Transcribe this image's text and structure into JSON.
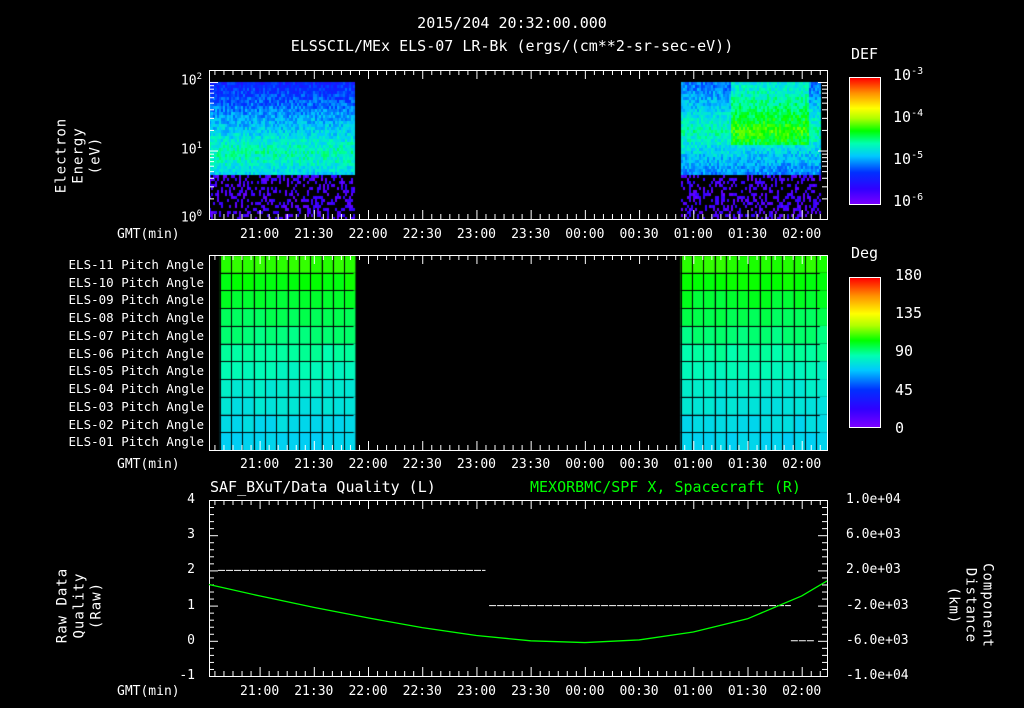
{
  "header": {
    "timestamp": "2015/204 20:32:00.000",
    "subtitle": "ELSSCIL/MEx ELS-07 LR-Bk  (ergs/(cm**2-sr-sec-eV))"
  },
  "time_axis": {
    "label": "GMT(min)",
    "ticks": [
      "21:00",
      "21:30",
      "22:00",
      "22:30",
      "23:00",
      "23:30",
      "00:00",
      "00:30",
      "01:00",
      "01:30",
      "02:00"
    ]
  },
  "colors": {
    "quality": "#ffffff",
    "spacecraft_x": "#00ff00",
    "background": "#000000"
  },
  "chart_data": [
    {
      "type": "heatmap",
      "title": "ELSSCIL/MEx ELS-07 LR-Bk  (ergs/(cm**2-sr-sec-eV))",
      "ylabel": [
        "Electron Energy",
        "(eV)"
      ],
      "yscale": "log",
      "ylim": [
        1,
        150
      ],
      "ytick_labels": [
        {
          "base": "10",
          "exp": "2"
        },
        {
          "base": "10",
          "exp": "1"
        },
        {
          "base": "10",
          "exp": "0"
        }
      ],
      "data_intervals_min_from_start": [
        [
          0,
          80
        ],
        [
          261,
          338
        ]
      ],
      "time_range": [
        "20:32",
        "02:14"
      ],
      "colorbar": {
        "label": "DEF",
        "scale": "log",
        "range": [
          1e-06,
          0.001
        ],
        "ticks": [
          {
            "base": "10",
            "exp": "-3"
          },
          {
            "base": "10",
            "exp": "-4"
          },
          {
            "base": "10",
            "exp": "-5"
          },
          {
            "base": "10",
            "exp": "-6"
          }
        ]
      }
    },
    {
      "type": "heatmap",
      "rows": [
        "ELS-11 Pitch Angle",
        "ELS-10 Pitch Angle",
        "ELS-09 Pitch Angle",
        "ELS-08 Pitch Angle",
        "ELS-07 Pitch Angle",
        "ELS-06 Pitch Angle",
        "ELS-05 Pitch Angle",
        "ELS-04 Pitch Angle",
        "ELS-03 Pitch Angle",
        "ELS-02 Pitch Angle",
        "ELS-01 Pitch Angle"
      ],
      "row_values_deg": [
        108,
        104,
        100,
        96,
        92,
        88,
        84,
        80,
        77,
        74,
        72
      ],
      "data_intervals_min_from_start": [
        [
          6,
          80
        ],
        [
          261,
          338
        ]
      ],
      "colorbar": {
        "label": "Deg",
        "range": [
          0,
          180
        ],
        "ticks": [
          "180",
          "135",
          "90",
          "45",
          "0"
        ]
      }
    },
    {
      "type": "line",
      "title_left": "SAF_BXuT/Data Quality (L)",
      "title_right": "MEXORBMC/SPF X, Spacecraft (R)",
      "ylabel_left": [
        "Raw Data Quality",
        "(Raw)"
      ],
      "ylabel_right": [
        "Component Distance",
        "(km)"
      ],
      "ylim_left": [
        -1,
        4
      ],
      "ylim_right": [
        -10000,
        10000
      ],
      "yticks_left": [
        "4",
        "3",
        "2",
        "1",
        "0",
        "-1"
      ],
      "yticks_right": [
        "1.0e+04",
        "6.0e+03",
        "2.0e+03",
        "-2.0e+03",
        "-6.0e+03",
        "-1.0e+04"
      ],
      "series": [
        {
          "name": "Data Quality",
          "axis": "left",
          "segments": [
            {
              "start_min": 5,
              "end_min": 153,
              "value": 2
            },
            {
              "start_min": 155,
              "end_min": 322,
              "value": 1
            },
            {
              "start_min": 322,
              "end_min": 335,
              "value": 0
            }
          ]
        },
        {
          "name": "SPF X, Spacecraft",
          "axis": "right",
          "x_min": [
            0,
            28,
            58,
            88,
            118,
            148,
            178,
            208,
            238,
            268,
            298,
            328,
            342
          ],
          "values": [
            400,
            -900,
            -2200,
            -3400,
            -4500,
            -5400,
            -6000,
            -6200,
            -5900,
            -5000,
            -3500,
            -900,
            800
          ]
        }
      ]
    }
  ]
}
